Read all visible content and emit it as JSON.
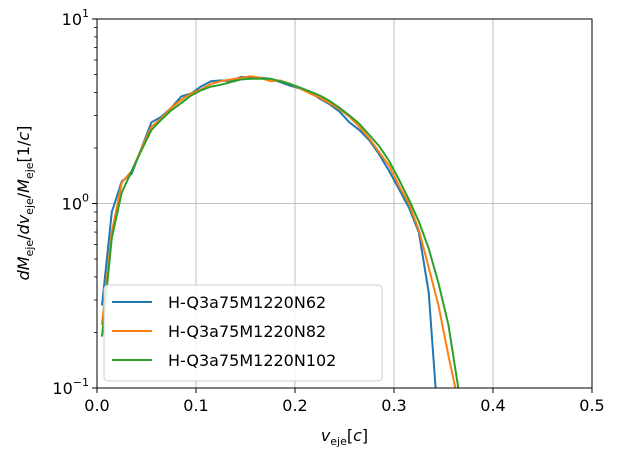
{
  "chart_data": {
    "type": "line",
    "xlabel": "v_eje[c]",
    "ylabel": "dM_eje/dv_eje/M_eje[1/c]",
    "xlim": [
      0.0,
      0.5
    ],
    "ylim": [
      0.1,
      10
    ],
    "yscale": "log",
    "grid": true,
    "legend_position": "lower-left",
    "x_ticks": [
      {
        "value": 0.0,
        "label": "0.0"
      },
      {
        "value": 0.1,
        "label": "0.1"
      },
      {
        "value": 0.2,
        "label": "0.2"
      },
      {
        "value": 0.3,
        "label": "0.3"
      },
      {
        "value": 0.4,
        "label": "0.4"
      },
      {
        "value": 0.5,
        "label": "0.5"
      }
    ],
    "y_ticks": [
      {
        "value": 0.1,
        "base": "10",
        "exp": "−1"
      },
      {
        "value": 1,
        "base": "10",
        "exp": "0"
      },
      {
        "value": 10,
        "base": "10",
        "exp": "1"
      }
    ],
    "series": [
      {
        "name": "H-Q3a75M1220N62",
        "color": "#1f77b4",
        "points": [
          [
            0.005,
            0.28
          ],
          [
            0.015,
            0.9
          ],
          [
            0.025,
            1.32
          ],
          [
            0.035,
            1.45
          ],
          [
            0.045,
            2.0
          ],
          [
            0.055,
            2.75
          ],
          [
            0.065,
            2.95
          ],
          [
            0.075,
            3.3
          ],
          [
            0.085,
            3.8
          ],
          [
            0.095,
            3.95
          ],
          [
            0.105,
            4.3
          ],
          [
            0.115,
            4.6
          ],
          [
            0.125,
            4.65
          ],
          [
            0.135,
            4.6
          ],
          [
            0.145,
            4.85
          ],
          [
            0.155,
            4.85
          ],
          [
            0.165,
            4.8
          ],
          [
            0.175,
            4.75
          ],
          [
            0.185,
            4.55
          ],
          [
            0.195,
            4.35
          ],
          [
            0.205,
            4.2
          ],
          [
            0.215,
            4.0
          ],
          [
            0.225,
            3.7
          ],
          [
            0.235,
            3.45
          ],
          [
            0.245,
            3.15
          ],
          [
            0.255,
            2.75
          ],
          [
            0.265,
            2.5
          ],
          [
            0.275,
            2.2
          ],
          [
            0.285,
            1.85
          ],
          [
            0.295,
            1.5
          ],
          [
            0.305,
            1.2
          ],
          [
            0.315,
            0.95
          ],
          [
            0.325,
            0.7
          ],
          [
            0.335,
            0.33
          ],
          [
            0.342,
            0.1
          ]
        ]
      },
      {
        "name": "H-Q3a75M1220N82",
        "color": "#ff7f0e",
        "points": [
          [
            0.005,
            0.22
          ],
          [
            0.015,
            0.7
          ],
          [
            0.025,
            1.3
          ],
          [
            0.035,
            1.5
          ],
          [
            0.045,
            2.0
          ],
          [
            0.055,
            2.6
          ],
          [
            0.065,
            2.9
          ],
          [
            0.075,
            3.3
          ],
          [
            0.085,
            3.65
          ],
          [
            0.095,
            3.95
          ],
          [
            0.105,
            4.15
          ],
          [
            0.115,
            4.45
          ],
          [
            0.125,
            4.6
          ],
          [
            0.135,
            4.7
          ],
          [
            0.145,
            4.8
          ],
          [
            0.155,
            4.9
          ],
          [
            0.165,
            4.8
          ],
          [
            0.175,
            4.6
          ],
          [
            0.185,
            4.65
          ],
          [
            0.195,
            4.45
          ],
          [
            0.205,
            4.2
          ],
          [
            0.215,
            3.95
          ],
          [
            0.225,
            3.75
          ],
          [
            0.235,
            3.5
          ],
          [
            0.245,
            3.25
          ],
          [
            0.255,
            2.95
          ],
          [
            0.265,
            2.6
          ],
          [
            0.275,
            2.25
          ],
          [
            0.285,
            1.9
          ],
          [
            0.295,
            1.6
          ],
          [
            0.305,
            1.25
          ],
          [
            0.315,
            1.0
          ],
          [
            0.325,
            0.72
          ],
          [
            0.335,
            0.45
          ],
          [
            0.345,
            0.28
          ],
          [
            0.355,
            0.15
          ],
          [
            0.362,
            0.1
          ]
        ]
      },
      {
        "name": "H-Q3a75M1220N102",
        "color": "#2ca02c",
        "points": [
          [
            0.005,
            0.19
          ],
          [
            0.015,
            0.65
          ],
          [
            0.025,
            1.15
          ],
          [
            0.035,
            1.5
          ],
          [
            0.045,
            1.95
          ],
          [
            0.055,
            2.5
          ],
          [
            0.065,
            2.85
          ],
          [
            0.075,
            3.2
          ],
          [
            0.085,
            3.5
          ],
          [
            0.095,
            3.85
          ],
          [
            0.105,
            4.1
          ],
          [
            0.115,
            4.3
          ],
          [
            0.125,
            4.4
          ],
          [
            0.135,
            4.55
          ],
          [
            0.145,
            4.7
          ],
          [
            0.155,
            4.75
          ],
          [
            0.165,
            4.75
          ],
          [
            0.175,
            4.75
          ],
          [
            0.185,
            4.6
          ],
          [
            0.195,
            4.45
          ],
          [
            0.205,
            4.25
          ],
          [
            0.215,
            4.05
          ],
          [
            0.225,
            3.85
          ],
          [
            0.235,
            3.6
          ],
          [
            0.245,
            3.3
          ],
          [
            0.255,
            3.0
          ],
          [
            0.265,
            2.7
          ],
          [
            0.275,
            2.35
          ],
          [
            0.285,
            2.05
          ],
          [
            0.295,
            1.7
          ],
          [
            0.305,
            1.35
          ],
          [
            0.315,
            1.05
          ],
          [
            0.325,
            0.8
          ],
          [
            0.335,
            0.57
          ],
          [
            0.345,
            0.37
          ],
          [
            0.355,
            0.22
          ],
          [
            0.365,
            0.1
          ]
        ]
      }
    ]
  }
}
